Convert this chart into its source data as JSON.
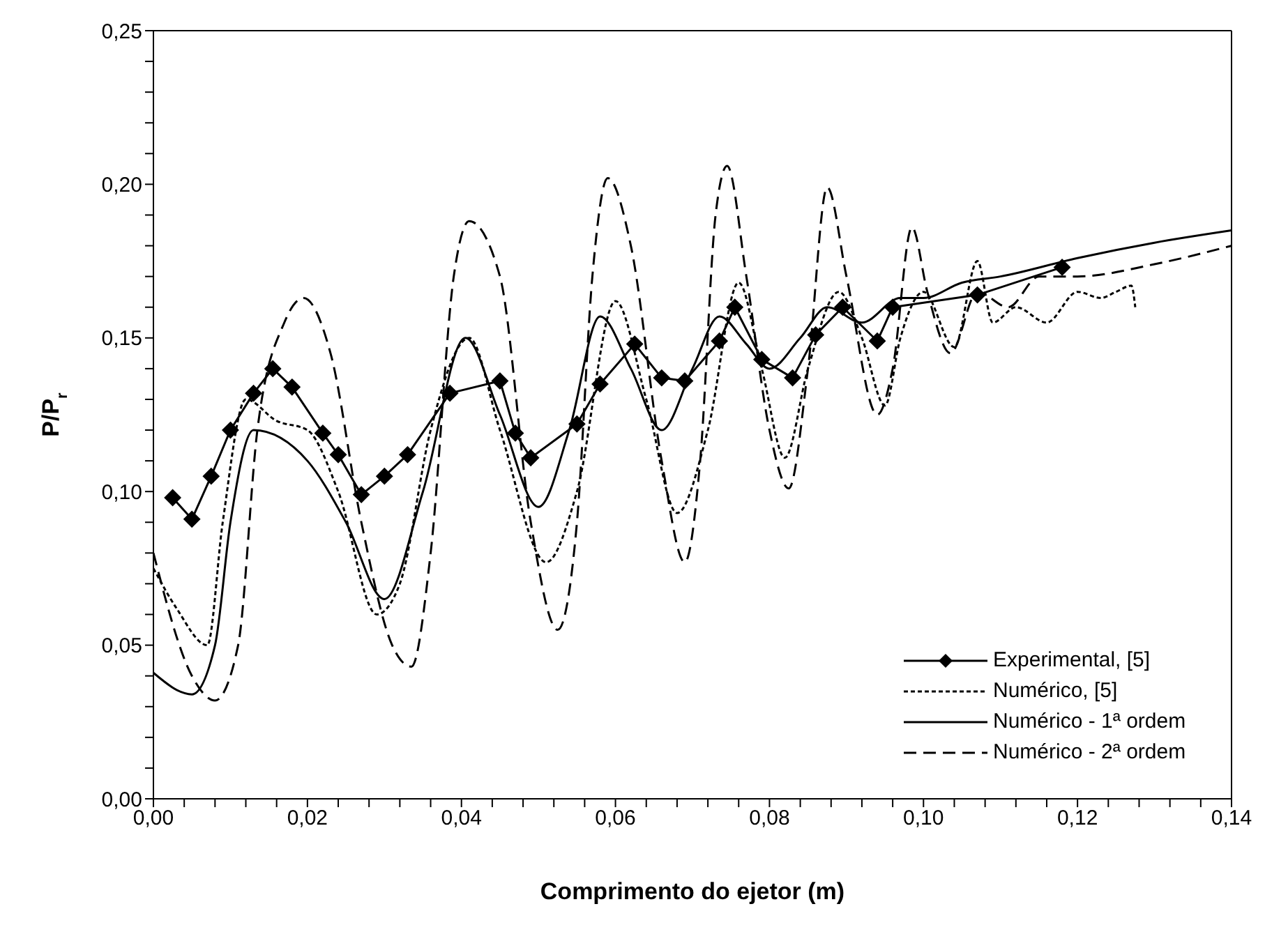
{
  "chart_data": {
    "type": "line",
    "xlabel": "Comprimento do ejetor (m)",
    "ylabel": "P/P$_{r}$",
    "xlim": [
      0,
      0.14
    ],
    "ylim": [
      0,
      0.25
    ],
    "xticks": [
      {
        "value": 0,
        "label": "0,00"
      },
      {
        "value": 0.004,
        "label": null
      },
      {
        "value": 0.008,
        "label": null
      },
      {
        "value": 0.012,
        "label": null
      },
      {
        "value": 0.016,
        "label": null
      },
      {
        "value": 0.02,
        "label": "0,02"
      },
      {
        "value": 0.024,
        "label": null
      },
      {
        "value": 0.028,
        "label": null
      },
      {
        "value": 0.032,
        "label": null
      },
      {
        "value": 0.036,
        "label": null
      },
      {
        "value": 0.04,
        "label": "0,04"
      },
      {
        "value": 0.044,
        "label": null
      },
      {
        "value": 0.048,
        "label": null
      },
      {
        "value": 0.052,
        "label": null
      },
      {
        "value": 0.056,
        "label": null
      },
      {
        "value": 0.06,
        "label": "0,06"
      },
      {
        "value": 0.064,
        "label": null
      },
      {
        "value": 0.068,
        "label": null
      },
      {
        "value": 0.072,
        "label": null
      },
      {
        "value": 0.076,
        "label": null
      },
      {
        "value": 0.08,
        "label": "0,08"
      },
      {
        "value": 0.084,
        "label": null
      },
      {
        "value": 0.088,
        "label": null
      },
      {
        "value": 0.092,
        "label": null
      },
      {
        "value": 0.096,
        "label": null
      },
      {
        "value": 0.1,
        "label": "0,10"
      },
      {
        "value": 0.104,
        "label": null
      },
      {
        "value": 0.108,
        "label": null
      },
      {
        "value": 0.112,
        "label": null
      },
      {
        "value": 0.116,
        "label": null
      },
      {
        "value": 0.12,
        "label": "0,12"
      },
      {
        "value": 0.124,
        "label": null
      },
      {
        "value": 0.128,
        "label": null
      },
      {
        "value": 0.132,
        "label": null
      },
      {
        "value": 0.136,
        "label": null
      },
      {
        "value": 0.14,
        "label": "0,14"
      }
    ],
    "yticks": [
      {
        "value": 0,
        "label": "0,00"
      },
      {
        "value": 0.01,
        "label": null
      },
      {
        "value": 0.02,
        "label": null
      },
      {
        "value": 0.03,
        "label": null
      },
      {
        "value": 0.04,
        "label": null
      },
      {
        "value": 0.05,
        "label": "0,05"
      },
      {
        "value": 0.06,
        "label": null
      },
      {
        "value": 0.07,
        "label": null
      },
      {
        "value": 0.08,
        "label": null
      },
      {
        "value": 0.09,
        "label": null
      },
      {
        "value": 0.1,
        "label": "0,10"
      },
      {
        "value": 0.11,
        "label": null
      },
      {
        "value": 0.12,
        "label": null
      },
      {
        "value": 0.13,
        "label": null
      },
      {
        "value": 0.14,
        "label": null
      },
      {
        "value": 0.15,
        "label": "0,15"
      },
      {
        "value": 0.16,
        "label": null
      },
      {
        "value": 0.17,
        "label": null
      },
      {
        "value": 0.18,
        "label": null
      },
      {
        "value": 0.19,
        "label": null
      },
      {
        "value": 0.2,
        "label": "0,20"
      },
      {
        "value": 0.21,
        "label": null
      },
      {
        "value": 0.22,
        "label": null
      },
      {
        "value": 0.23,
        "label": null
      },
      {
        "value": 0.24,
        "label": null
      },
      {
        "value": 0.25,
        "label": "0,25"
      }
    ],
    "legend": "bottom right",
    "series": [
      {
        "name": "Experimental, [5]",
        "color": "#000000",
        "marker": "diamond",
        "line_style": "solid",
        "x": [
          0.0025,
          0.005,
          0.0075,
          0.01,
          0.013,
          0.0155,
          0.018,
          0.022,
          0.024,
          0.027,
          0.03,
          0.033,
          0.0385,
          0.045,
          0.047,
          0.049,
          0.055,
          0.058,
          0.0625,
          0.066,
          0.069,
          0.0735,
          0.0755,
          0.079,
          0.083,
          0.086,
          0.0895,
          0.094,
          0.096,
          0.107,
          0.118
        ],
        "values": [
          0.098,
          0.091,
          0.105,
          0.12,
          0.132,
          0.14,
          0.134,
          0.119,
          0.112,
          0.099,
          0.105,
          0.112,
          0.132,
          0.136,
          0.119,
          0.111,
          0.122,
          0.135,
          0.148,
          0.137,
          0.136,
          0.149,
          0.16,
          0.143,
          0.137,
          0.151,
          0.16,
          0.149,
          0.16,
          0.164,
          0.173
        ]
      },
      {
        "name": "Numérico, [5]",
        "color": "#000000",
        "marker": "none",
        "line_style": "dotted",
        "x": [
          0,
          0.003,
          0.007,
          0.009,
          0.012,
          0.016,
          0.02,
          0.024,
          0.029,
          0.032,
          0.036,
          0.041,
          0.045,
          0.051,
          0.055,
          0.06,
          0.064,
          0.068,
          0.072,
          0.076,
          0.079,
          0.082,
          0.085,
          0.089,
          0.092,
          0.095,
          0.097,
          0.1,
          0.104,
          0.107,
          0.109,
          0.112,
          0.116,
          0.12,
          0.123,
          0.125,
          0.127,
          0.1275
        ],
        "values": [
          0.075,
          0.062,
          0.05,
          0.09,
          0.13,
          0.123,
          0.12,
          0.1,
          0.06,
          0.07,
          0.12,
          0.15,
          0.12,
          0.077,
          0.1,
          0.162,
          0.13,
          0.093,
          0.12,
          0.168,
          0.14,
          0.111,
          0.14,
          0.165,
          0.15,
          0.128,
          0.15,
          0.165,
          0.147,
          0.175,
          0.155,
          0.16,
          0.155,
          0.165,
          0.163,
          0.165,
          0.167,
          0.16
        ]
      },
      {
        "name": "Numérico - 1ª ordem",
        "color": "#000000",
        "marker": "none",
        "line_style": "solid",
        "x": [
          0,
          0.005,
          0.008,
          0.01,
          0.013,
          0.02,
          0.025,
          0.03,
          0.035,
          0.0405,
          0.045,
          0.05,
          0.054,
          0.058,
          0.062,
          0.066,
          0.07,
          0.0735,
          0.077,
          0.08,
          0.084,
          0.0875,
          0.092,
          0.097,
          0.1,
          0.105,
          0.11,
          0.12,
          0.13,
          0.14
        ],
        "values": [
          0.041,
          0.034,
          0.05,
          0.09,
          0.12,
          0.11,
          0.09,
          0.065,
          0.1,
          0.15,
          0.125,
          0.095,
          0.12,
          0.157,
          0.14,
          0.12,
          0.14,
          0.157,
          0.148,
          0.14,
          0.15,
          0.16,
          0.155,
          0.163,
          0.163,
          0.168,
          0.17,
          0.176,
          0.181,
          0.185
        ]
      },
      {
        "name": "Numérico - 2ª ordem",
        "color": "#000000",
        "marker": "none",
        "line_style": "dashed",
        "x": [
          0,
          0.005,
          0.008,
          0.011,
          0.0135,
          0.017,
          0.0195,
          0.023,
          0.027,
          0.031,
          0.0335,
          0.036,
          0.039,
          0.041,
          0.045,
          0.049,
          0.0525,
          0.055,
          0.057,
          0.059,
          0.062,
          0.066,
          0.069,
          0.071,
          0.073,
          0.0745,
          0.077,
          0.08,
          0.0825,
          0.085,
          0.0875,
          0.09,
          0.094,
          0.096,
          0.0985,
          0.1005,
          0.1035,
          0.107,
          0.111,
          0.115,
          0.12,
          0.13,
          0.14
        ],
        "values": [
          0.08,
          0.04,
          0.032,
          0.05,
          0.12,
          0.155,
          0.163,
          0.145,
          0.09,
          0.05,
          0.043,
          0.08,
          0.17,
          0.188,
          0.17,
          0.09,
          0.055,
          0.09,
          0.17,
          0.202,
          0.18,
          0.11,
          0.077,
          0.11,
          0.19,
          0.206,
          0.17,
          0.12,
          0.101,
          0.14,
          0.199,
          0.17,
          0.125,
          0.14,
          0.186,
          0.165,
          0.145,
          0.165,
          0.16,
          0.17,
          0.17,
          0.174,
          0.18
        ]
      }
    ]
  }
}
